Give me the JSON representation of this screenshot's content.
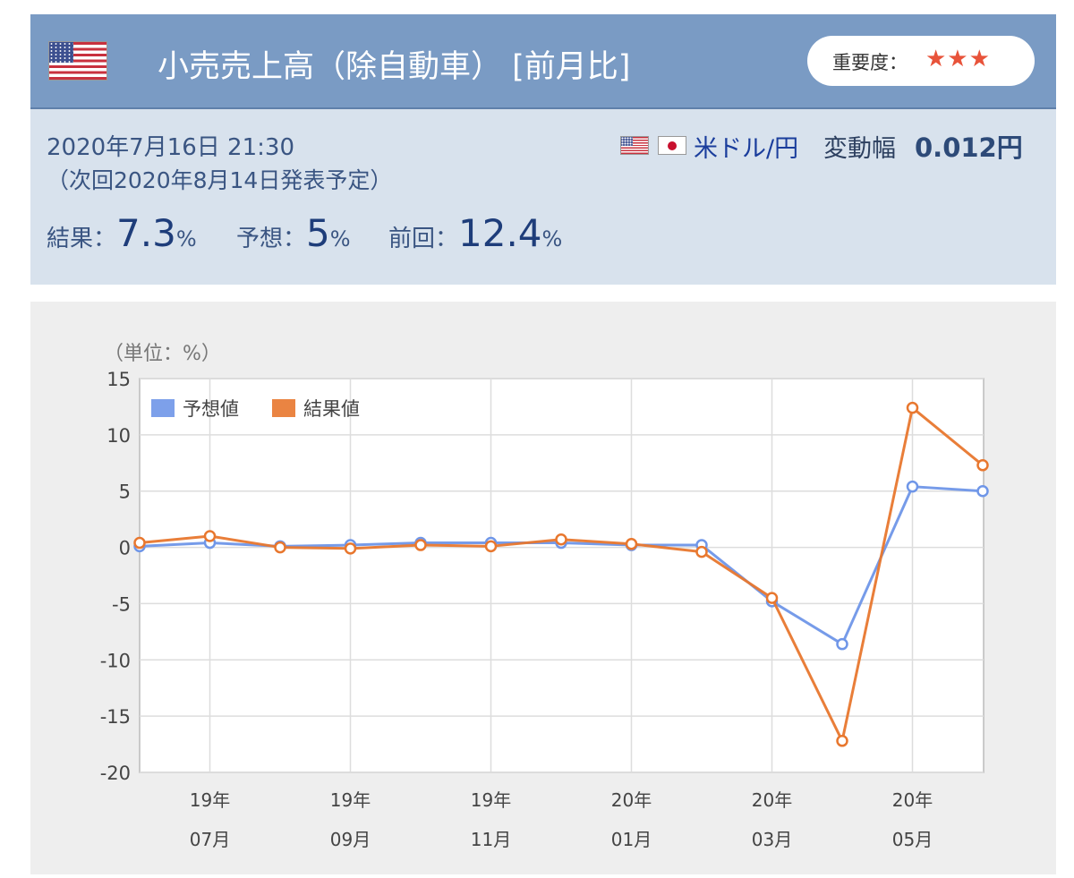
{
  "header": {
    "title": "小売売上高（除自動車） [前月比]",
    "importance_label": "重要度：",
    "importance_stars": "★★★",
    "flag_icon": "us-flag-icon"
  },
  "release": {
    "datetime": "2020年7月16日 21:30",
    "next": "（次回2020年8月14日発表予定）",
    "pair_label": "米ドル/円",
    "range_label": "変動幅",
    "range_value": "0.012円"
  },
  "results": {
    "actual_label": "結果：",
    "actual_value": "7.3",
    "forecast_label": "予想：",
    "forecast_value": "5",
    "previous_label": "前回：",
    "previous_value": "12.4",
    "unit": "%"
  },
  "colors": {
    "forecast": "#6f96e8",
    "actual": "#e8772e",
    "header_bg": "#7a9bc4",
    "info_bg": "#d8e2ed"
  },
  "chart_data": {
    "type": "line",
    "unit_label": "（単位：%）",
    "x": [
      "2019-06",
      "2019-07",
      "2019-08",
      "2019-09",
      "2019-10",
      "2019-11",
      "2019-12",
      "2020-01",
      "2020-02",
      "2020-03",
      "2020-04",
      "2020-05",
      "2020-06"
    ],
    "x_tick_labels": [
      {
        "x": "2019-07",
        "year": "19年",
        "month": "07月"
      },
      {
        "x": "2019-09",
        "year": "19年",
        "month": "09月"
      },
      {
        "x": "2019-11",
        "year": "19年",
        "month": "11月"
      },
      {
        "x": "2020-01",
        "year": "20年",
        "month": "01月"
      },
      {
        "x": "2020-03",
        "year": "20年",
        "month": "03月"
      },
      {
        "x": "2020-05",
        "year": "20年",
        "month": "05月"
      }
    ],
    "series": [
      {
        "name": "予想値",
        "values": [
          0.1,
          0.4,
          0.1,
          0.2,
          0.4,
          0.4,
          0.4,
          0.2,
          0.2,
          -4.8,
          -8.6,
          5.4,
          5.0
        ]
      },
      {
        "name": "結果値",
        "values": [
          0.4,
          1.0,
          0.0,
          -0.1,
          0.2,
          0.1,
          0.7,
          0.3,
          -0.4,
          -4.5,
          -17.2,
          12.4,
          7.3
        ]
      }
    ],
    "ylim": [
      -20,
      15
    ],
    "yticks": [
      15,
      10,
      5,
      0,
      -5,
      -10,
      -15,
      -20
    ],
    "grid": true,
    "legend": "top-left"
  }
}
